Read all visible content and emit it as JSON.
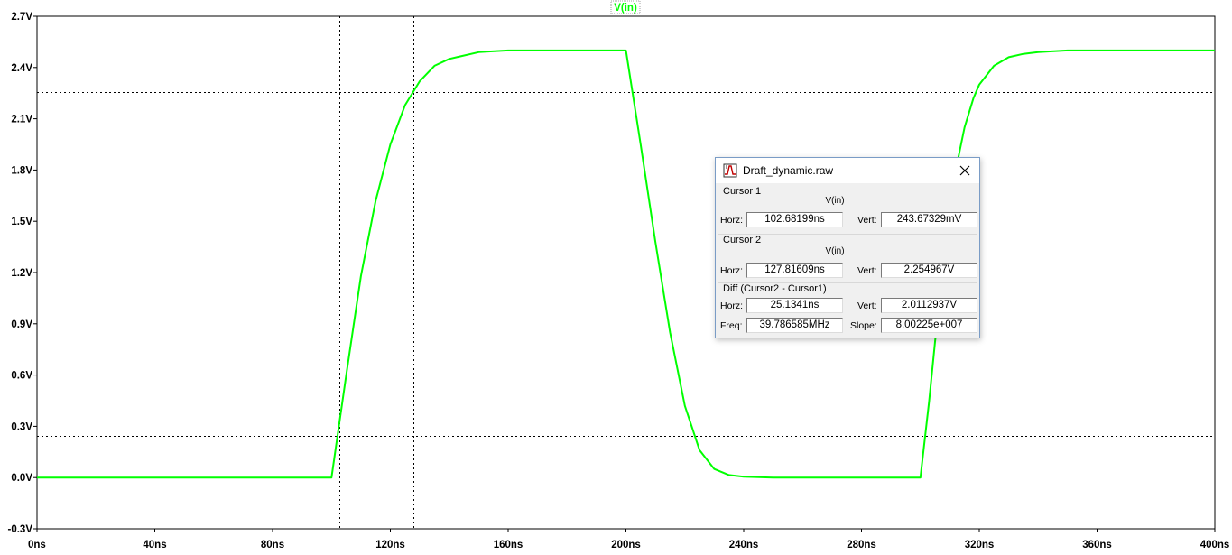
{
  "trace_title": "V(in)",
  "chart_data": {
    "type": "line",
    "title": "V(in)",
    "xlabel": "",
    "ylabel": "",
    "xlim": [
      0,
      400
    ],
    "ylim": [
      -0.3,
      2.7
    ],
    "x_ticks": [
      "0ns",
      "40ns",
      "80ns",
      "120ns",
      "160ns",
      "200ns",
      "240ns",
      "280ns",
      "320ns",
      "360ns",
      "400ns"
    ],
    "y_ticks": [
      "-0.3V",
      "0.0V",
      "0.3V",
      "0.6V",
      "0.9V",
      "1.2V",
      "1.5V",
      "1.8V",
      "2.1V",
      "2.4V",
      "2.7V"
    ],
    "grid": false,
    "line_color": "#00ff00",
    "series": [
      {
        "name": "V(in)",
        "x": [
          0,
          100,
          105,
          110,
          115,
          120,
          125,
          130,
          135,
          140,
          150,
          160,
          180,
          200,
          205,
          210,
          215,
          220,
          225,
          230,
          235,
          240,
          250,
          260,
          300,
          303,
          305,
          308,
          310,
          312,
          315,
          318,
          320,
          325,
          330,
          335,
          340,
          350,
          360,
          380,
          400
        ],
        "y": [
          0,
          0,
          0.6,
          1.18,
          1.62,
          1.95,
          2.18,
          2.32,
          2.41,
          2.45,
          2.49,
          2.5,
          2.5,
          2.5,
          1.95,
          1.38,
          0.85,
          0.42,
          0.16,
          0.05,
          0.015,
          0.005,
          0,
          0,
          0,
          0.45,
          0.8,
          1.25,
          1.55,
          1.8,
          2.05,
          2.22,
          2.3,
          2.41,
          2.46,
          2.48,
          2.49,
          2.5,
          2.5,
          2.5,
          2.5
        ]
      }
    ],
    "cursors": {
      "vertical_ns": [
        102.68199,
        127.81609
      ],
      "horizontal_v": [
        0.24367329,
        2.254967
      ]
    }
  },
  "dialog": {
    "title": "Draft_dynamic.raw",
    "icon": "ltspice-waveform-icon",
    "close_icon": "close-icon",
    "cursor1": {
      "label": "Cursor 1",
      "trace": "V(in)",
      "horz_label": "Horz:",
      "horz": "102.68199ns",
      "vert_label": "Vert:",
      "vert": "243.67329mV"
    },
    "cursor2": {
      "label": "Cursor 2",
      "trace": "V(in)",
      "horz_label": "Horz:",
      "horz": "127.81609ns",
      "vert_label": "Vert:",
      "vert": "2.254967V"
    },
    "diff": {
      "label": "Diff (Cursor2 - Cursor1)",
      "horz_label": "Horz:",
      "horz": "25.1341ns",
      "vert_label": "Vert:",
      "vert": "2.0112937V",
      "freq_label": "Freq:",
      "freq": "39.786585MHz",
      "slope_label": "Slope:",
      "slope": "8.00225e+007"
    }
  }
}
